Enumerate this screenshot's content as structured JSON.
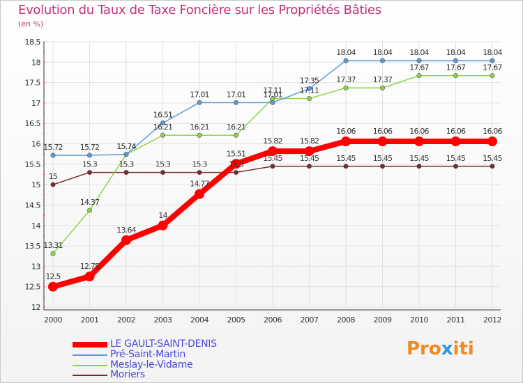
{
  "title": "Evolution du Taux de Taxe Foncière sur les Propriétés Bâties",
  "subtitle": "(en %)",
  "logo": {
    "parts": [
      "Pro",
      "x",
      "iti"
    ],
    "colors": [
      "#f08a1e",
      "#2a9adf",
      "#f08a1e"
    ]
  },
  "chart_data": {
    "type": "line",
    "x": [
      "2000",
      "2001",
      "2002",
      "2003",
      "2004",
      "2005",
      "2006",
      "2007",
      "2008",
      "2009",
      "2010",
      "2011",
      "2012"
    ],
    "yticks": [
      "12",
      "12.5",
      "13",
      "13.5",
      "14",
      "14.5",
      "15",
      "15.5",
      "16",
      "16.5",
      "17",
      "17.5",
      "18",
      "18.5"
    ],
    "ylim": [
      12,
      18.5
    ],
    "grid": true,
    "series": [
      {
        "name": "LE GAULT-SAINT-DENIS",
        "color": "#ff0000",
        "values": [
          12.5,
          12.75,
          13.64,
          14,
          14.77,
          15.51,
          15.82,
          15.82,
          16.06,
          16.06,
          16.06,
          16.06,
          16.06
        ],
        "labels": [
          "12.5",
          "12.75",
          "13.64",
          "14",
          "14.77",
          "15.51",
          "15.82",
          "15.82",
          "16.06",
          "16.06",
          "16.06",
          "16.06",
          "16.06"
        ]
      },
      {
        "name": "Pré-Saint-Martin",
        "color": "#5b9bd5",
        "values": [
          15.72,
          15.72,
          15.74,
          16.51,
          17.01,
          17.01,
          17.01,
          17.35,
          18.04,
          18.04,
          18.04,
          18.04,
          18.04
        ],
        "labels": [
          "15.72",
          "15.72",
          "15.74",
          "16.51",
          "17.01",
          "17.01",
          "17.01",
          "17.35",
          "18.04",
          "18.04",
          "18.04",
          "18.04",
          "18.04"
        ]
      },
      {
        "name": "Meslay-le-Vidame",
        "color": "#8ed44a",
        "values": [
          13.31,
          14.37,
          15.74,
          16.21,
          16.21,
          16.21,
          17.11,
          17.11,
          17.37,
          17.37,
          17.67,
          17.67,
          17.67
        ],
        "labels": [
          "13.31",
          "14.37",
          "15.74",
          "16.21",
          "16.21",
          "16.21",
          "17.11",
          "17.11",
          "17.37",
          "17.37",
          "17.67",
          "17.67",
          "17.67"
        ]
      },
      {
        "name": "Moriers",
        "color": "#7a2a2a",
        "values": [
          15,
          15.3,
          15.3,
          15.3,
          15.3,
          15.3,
          15.45,
          15.45,
          15.45,
          15.45,
          15.45,
          15.45,
          15.45
        ],
        "labels": [
          "15",
          "15.3",
          "15.3",
          "15.3",
          "15.3",
          "15.3",
          "15.45",
          "15.45",
          "15.45",
          "15.45",
          "15.45",
          "15.45",
          "15.45"
        ]
      }
    ]
  }
}
